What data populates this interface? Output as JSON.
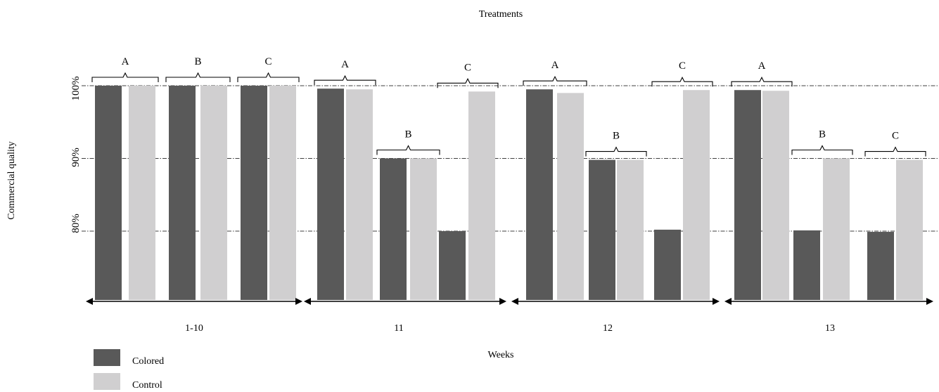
{
  "chart_data": {
    "type": "bar",
    "title": "Treatments",
    "xlabel": "Weeks",
    "ylabel": "Commercial quality",
    "y_ticks": [
      {
        "label": "100%",
        "value": 100
      },
      {
        "label": "90%",
        "value": 90
      },
      {
        "label": "80%",
        "value": 80
      }
    ],
    "y_reference_lines": [
      100,
      90,
      80
    ],
    "y_axis_scale": "100% at top gridline, 90% and 80% at lower gridlines; bars extend below 80% without a printed baseline",
    "grid": "dash-dot horizontal reference lines",
    "legend_position": "bottom-left",
    "series": [
      {
        "name": "Colored",
        "color": "#595959"
      },
      {
        "name": "Control",
        "color": "#d0cfd0"
      }
    ],
    "week_groups": [
      {
        "label": "1-10",
        "treatments": [
          {
            "label": "A",
            "Colored": 100,
            "Control": 100
          },
          {
            "label": "B",
            "Colored": 100,
            "Control": 100
          },
          {
            "label": "C",
            "Colored": 100,
            "Control": 100
          }
        ]
      },
      {
        "label": "11",
        "treatments": [
          {
            "label": "A",
            "Colored": 99.6,
            "Control": 99.5
          },
          {
            "label": "B",
            "Colored": 90,
            "Control": 90
          },
          {
            "label": "C",
            "Colored": 80,
            "Control": 99.2
          }
        ]
      },
      {
        "label": "12",
        "treatments": [
          {
            "label": "A",
            "Colored": 99.5,
            "Control": 99
          },
          {
            "label": "B",
            "Colored": 89.8,
            "Control": 89.8
          },
          {
            "label": "C",
            "Colored": 80.2,
            "Control": 99.4
          }
        ]
      },
      {
        "label": "13",
        "treatments": [
          {
            "label": "A",
            "Colored": 99.4,
            "Control": 99.3
          },
          {
            "label": "B",
            "Colored": 80.1,
            "Control": 90
          },
          {
            "label": "C",
            "Colored": 79.9,
            "Control": 89.8
          }
        ]
      }
    ]
  }
}
